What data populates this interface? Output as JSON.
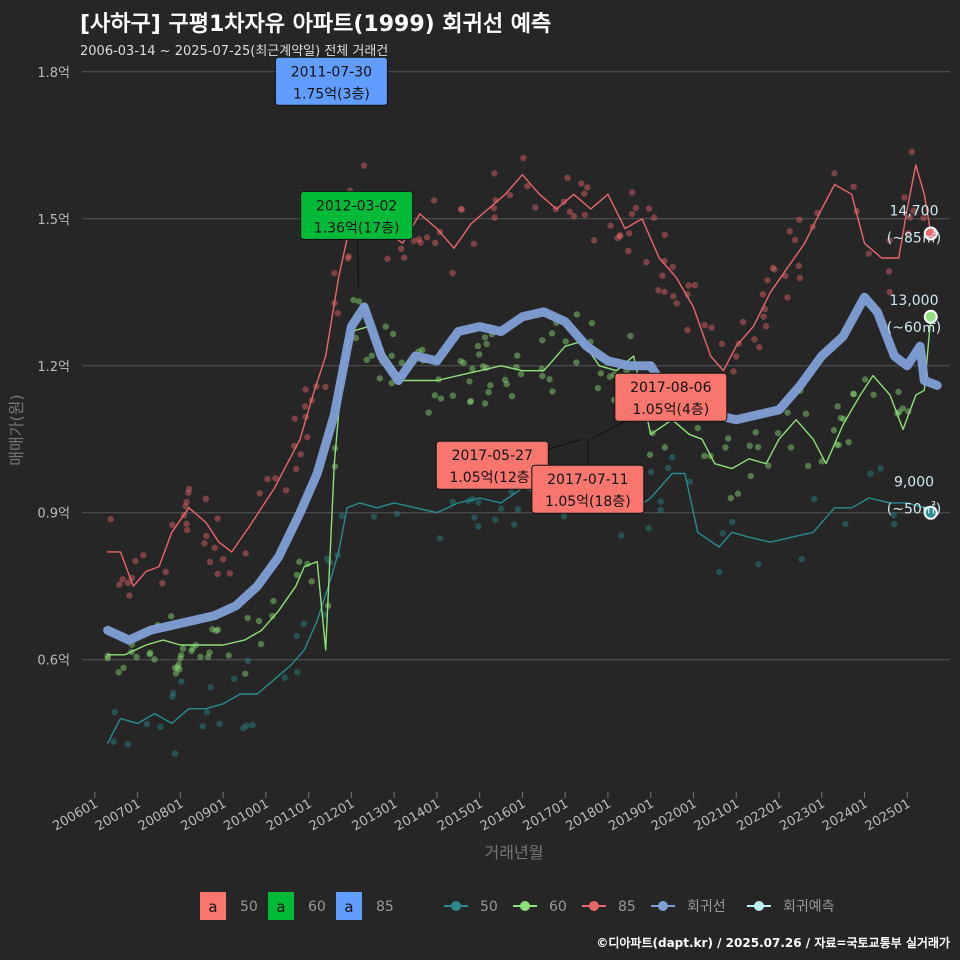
{
  "header": {
    "title": "[사하구] 구평1차자유 아파트(1999) 회귀선 예측",
    "subtitle": "2006-03-14 ~ 2025-07-25(최근계약일) 전체 거래건"
  },
  "footer": {
    "credit": "©디아파트(dapt.kr) / 2025.07.26 / 자료=국토교통부 실거래가"
  },
  "colors": {
    "bg": "#262626",
    "grid": "#555555",
    "s50": "#2a8a8f",
    "s60": "#8fe07a",
    "s85": "#e8676a",
    "regression": "#7f9fd6",
    "forecast": "#bff3f3",
    "label50": "#f8766d",
    "label60": "#00ba38",
    "label85": "#619cff"
  },
  "chart_data": {
    "type": "line",
    "xlabel": "거래년월",
    "ylabel": "매매가(원)",
    "x_ticks": [
      "200601",
      "200701",
      "200801",
      "200901",
      "201001",
      "201101",
      "201201",
      "201301",
      "201401",
      "201501",
      "201601",
      "201701",
      "201801",
      "201901",
      "202001",
      "202101",
      "202201",
      "202301",
      "202401",
      "202501"
    ],
    "x_range": [
      2005.7,
      2026.0
    ],
    "y_ticks": [
      {
        "value": 0.6,
        "label": "0.6억"
      },
      {
        "value": 0.9,
        "label": "0.9억"
      },
      {
        "value": 1.2,
        "label": "1.2억"
      },
      {
        "value": 1.5,
        "label": "1.5억"
      },
      {
        "value": 1.8,
        "label": "1.8억"
      }
    ],
    "y_range": [
      0.33,
      1.82
    ],
    "series": [
      {
        "name": "50",
        "color": "#2a8a8f",
        "points": [
          [
            2006.3,
            0.43
          ],
          [
            2006.6,
            0.48
          ],
          [
            2007.0,
            0.47
          ],
          [
            2007.4,
            0.49
          ],
          [
            2007.8,
            0.47
          ],
          [
            2008.2,
            0.5
          ],
          [
            2008.6,
            0.5
          ],
          [
            2009.0,
            0.51
          ],
          [
            2009.4,
            0.53
          ],
          [
            2009.8,
            0.53
          ],
          [
            2010.2,
            0.56
          ],
          [
            2010.6,
            0.59
          ],
          [
            2010.9,
            0.62
          ],
          [
            2011.2,
            0.68
          ],
          [
            2011.5,
            0.76
          ],
          [
            2011.7,
            0.82
          ],
          [
            2011.9,
            0.91
          ],
          [
            2012.2,
            0.92
          ],
          [
            2012.6,
            0.91
          ],
          [
            2013.0,
            0.92
          ],
          [
            2013.5,
            0.91
          ],
          [
            2014.0,
            0.9
          ],
          [
            2014.5,
            0.92
          ],
          [
            2015.0,
            0.93
          ],
          [
            2015.5,
            0.92
          ],
          [
            2016.0,
            0.95
          ],
          [
            2016.5,
            0.94
          ],
          [
            2017.0,
            0.96
          ],
          [
            2017.5,
            0.95
          ],
          [
            2018.0,
            0.93
          ],
          [
            2018.5,
            0.9
          ],
          [
            2019.0,
            0.93
          ],
          [
            2019.5,
            0.98
          ],
          [
            2019.8,
            0.98
          ],
          [
            2020.1,
            0.86
          ],
          [
            2020.6,
            0.83
          ],
          [
            2020.9,
            0.86
          ],
          [
            2021.3,
            0.85
          ],
          [
            2021.8,
            0.84
          ],
          [
            2022.3,
            0.85
          ],
          [
            2022.8,
            0.86
          ],
          [
            2023.3,
            0.91
          ],
          [
            2023.7,
            0.91
          ],
          [
            2024.1,
            0.93
          ],
          [
            2024.6,
            0.92
          ],
          [
            2025.0,
            0.92
          ],
          [
            2025.4,
            0.91
          ],
          [
            2025.55,
            0.9
          ]
        ],
        "end_label": "9,000",
        "end_sub": "(~50㎡)"
      },
      {
        "name": "60",
        "color": "#8fe07a",
        "points": [
          [
            2006.3,
            0.61
          ],
          [
            2006.7,
            0.61
          ],
          [
            2007.2,
            0.63
          ],
          [
            2007.6,
            0.64
          ],
          [
            2008.0,
            0.63
          ],
          [
            2008.5,
            0.63
          ],
          [
            2009.0,
            0.63
          ],
          [
            2009.5,
            0.64
          ],
          [
            2009.9,
            0.66
          ],
          [
            2010.3,
            0.7
          ],
          [
            2010.7,
            0.75
          ],
          [
            2010.9,
            0.79
          ],
          [
            2011.2,
            0.8
          ],
          [
            2011.4,
            0.62
          ],
          [
            2011.6,
            1.0
          ],
          [
            2011.8,
            1.2
          ],
          [
            2012.0,
            1.27
          ],
          [
            2012.4,
            1.28
          ],
          [
            2012.8,
            1.22
          ],
          [
            2013.2,
            1.17
          ],
          [
            2013.6,
            1.17
          ],
          [
            2014.0,
            1.17
          ],
          [
            2014.5,
            1.18
          ],
          [
            2015.0,
            1.19
          ],
          [
            2015.5,
            1.2
          ],
          [
            2016.0,
            1.19
          ],
          [
            2016.5,
            1.19
          ],
          [
            2017.0,
            1.24
          ],
          [
            2017.4,
            1.25
          ],
          [
            2017.8,
            1.2
          ],
          [
            2018.2,
            1.19
          ],
          [
            2018.6,
            1.22
          ],
          [
            2019.0,
            1.06
          ],
          [
            2019.5,
            1.09
          ],
          [
            2019.9,
            1.06
          ],
          [
            2020.2,
            1.05
          ],
          [
            2020.5,
            1.0
          ],
          [
            2020.9,
            0.99
          ],
          [
            2021.3,
            1.01
          ],
          [
            2021.7,
            1.0
          ],
          [
            2022.0,
            1.05
          ],
          [
            2022.4,
            1.09
          ],
          [
            2022.8,
            1.05
          ],
          [
            2023.1,
            1.0
          ],
          [
            2023.5,
            1.08
          ],
          [
            2023.9,
            1.14
          ],
          [
            2024.2,
            1.18
          ],
          [
            2024.6,
            1.14
          ],
          [
            2024.9,
            1.07
          ],
          [
            2025.2,
            1.14
          ],
          [
            2025.4,
            1.15
          ],
          [
            2025.55,
            1.3
          ]
        ],
        "end_label": "13,000",
        "end_sub": "(~60㎡)"
      },
      {
        "name": "85",
        "color": "#e8676a",
        "points": [
          [
            2006.3,
            0.82
          ],
          [
            2006.6,
            0.82
          ],
          [
            2006.9,
            0.75
          ],
          [
            2007.2,
            0.78
          ],
          [
            2007.5,
            0.79
          ],
          [
            2007.8,
            0.86
          ],
          [
            2008.2,
            0.91
          ],
          [
            2008.6,
            0.88
          ],
          [
            2008.9,
            0.84
          ],
          [
            2009.2,
            0.82
          ],
          [
            2009.6,
            0.87
          ],
          [
            2009.9,
            0.91
          ],
          [
            2010.2,
            0.95
          ],
          [
            2010.5,
            1.0
          ],
          [
            2010.8,
            1.05
          ],
          [
            2011.1,
            1.14
          ],
          [
            2011.4,
            1.22
          ],
          [
            2011.7,
            1.38
          ],
          [
            2012.0,
            1.5
          ],
          [
            2012.3,
            1.55
          ],
          [
            2012.6,
            1.49
          ],
          [
            2012.9,
            1.47
          ],
          [
            2013.2,
            1.45
          ],
          [
            2013.6,
            1.51
          ],
          [
            2014.0,
            1.48
          ],
          [
            2014.4,
            1.44
          ],
          [
            2014.8,
            1.49
          ],
          [
            2015.2,
            1.52
          ],
          [
            2015.6,
            1.55
          ],
          [
            2016.0,
            1.59
          ],
          [
            2016.4,
            1.55
          ],
          [
            2016.8,
            1.52
          ],
          [
            2017.2,
            1.55
          ],
          [
            2017.6,
            1.52
          ],
          [
            2018.0,
            1.55
          ],
          [
            2018.4,
            1.48
          ],
          [
            2018.8,
            1.5
          ],
          [
            2019.2,
            1.42
          ],
          [
            2019.6,
            1.38
          ],
          [
            2020.0,
            1.32
          ],
          [
            2020.4,
            1.22
          ],
          [
            2020.7,
            1.19
          ],
          [
            2021.0,
            1.24
          ],
          [
            2021.4,
            1.28
          ],
          [
            2021.8,
            1.35
          ],
          [
            2022.2,
            1.4
          ],
          [
            2022.6,
            1.45
          ],
          [
            2023.0,
            1.52
          ],
          [
            2023.3,
            1.57
          ],
          [
            2023.7,
            1.55
          ],
          [
            2024.0,
            1.45
          ],
          [
            2024.4,
            1.42
          ],
          [
            2024.8,
            1.42
          ],
          [
            2025.0,
            1.52
          ],
          [
            2025.2,
            1.61
          ],
          [
            2025.4,
            1.55
          ],
          [
            2025.55,
            1.47
          ]
        ],
        "end_label": "14,700",
        "end_sub": "(~85㎡)"
      },
      {
        "name": "회귀선",
        "color": "#7f9fd6",
        "points": [
          [
            2006.3,
            0.66
          ],
          [
            2006.8,
            0.64
          ],
          [
            2007.3,
            0.66
          ],
          [
            2007.8,
            0.67
          ],
          [
            2008.3,
            0.68
          ],
          [
            2008.8,
            0.69
          ],
          [
            2009.3,
            0.71
          ],
          [
            2009.8,
            0.75
          ],
          [
            2010.3,
            0.81
          ],
          [
            2010.8,
            0.9
          ],
          [
            2011.2,
            0.98
          ],
          [
            2011.6,
            1.1
          ],
          [
            2012.0,
            1.28
          ],
          [
            2012.3,
            1.32
          ],
          [
            2012.7,
            1.22
          ],
          [
            2013.1,
            1.17
          ],
          [
            2013.5,
            1.22
          ],
          [
            2014.0,
            1.21
          ],
          [
            2014.5,
            1.27
          ],
          [
            2015.0,
            1.28
          ],
          [
            2015.5,
            1.27
          ],
          [
            2016.0,
            1.3
          ],
          [
            2016.5,
            1.31
          ],
          [
            2017.0,
            1.29
          ],
          [
            2017.5,
            1.24
          ],
          [
            2018.0,
            1.21
          ],
          [
            2018.5,
            1.2
          ],
          [
            2019.0,
            1.2
          ],
          [
            2019.5,
            1.13
          ],
          [
            2020.0,
            1.12
          ],
          [
            2020.5,
            1.1
          ],
          [
            2021.0,
            1.09
          ],
          [
            2021.5,
            1.1
          ],
          [
            2022.0,
            1.11
          ],
          [
            2022.5,
            1.16
          ],
          [
            2023.0,
            1.22
          ],
          [
            2023.5,
            1.26
          ],
          [
            2024.0,
            1.34
          ],
          [
            2024.3,
            1.31
          ],
          [
            2024.7,
            1.22
          ],
          [
            2025.0,
            1.2
          ],
          [
            2025.3,
            1.24
          ],
          [
            2025.4,
            1.17
          ],
          [
            2025.7,
            1.16
          ]
        ]
      }
    ],
    "forecast_points": [
      {
        "series": "85",
        "x": 2025.55,
        "y": 1.47
      },
      {
        "series": "60",
        "x": 2025.55,
        "y": 1.3
      },
      {
        "series": "50",
        "x": 2025.55,
        "y": 0.9
      }
    ],
    "annotations": [
      {
        "date": "2011-07-30",
        "value": "1.75억(3층)",
        "kind": "85",
        "x": 2011.58,
        "y": 1.75
      },
      {
        "date": "2012-03-02",
        "value": "1.36억(17층)",
        "kind": "60",
        "x": 2012.17,
        "y": 1.36
      },
      {
        "date": "2017-05-27",
        "value": "1.05억(12층)",
        "kind": "50",
        "x": 2017.4,
        "y": 1.05
      },
      {
        "date": "2017-07-11",
        "value": "1.05억(18층)",
        "kind": "50",
        "x": 2017.53,
        "y": 1.05
      },
      {
        "date": "2017-08-06",
        "value": "1.05억(4층)",
        "kind": "50",
        "x": 2017.6,
        "y": 1.05
      }
    ],
    "legend": {
      "label_items": [
        {
          "key": "a",
          "text": "50",
          "color": "#f8766d"
        },
        {
          "key": "a",
          "text": "60",
          "color": "#00ba38"
        },
        {
          "key": "a",
          "text": "85",
          "color": "#619cff"
        }
      ],
      "line_items": [
        {
          "text": "50",
          "color": "#2a8a8f"
        },
        {
          "text": "60",
          "color": "#8fe07a"
        },
        {
          "text": "85",
          "color": "#e8676a"
        },
        {
          "text": "회귀선",
          "color": "#7f9fd6"
        },
        {
          "text": "회귀예측",
          "color": "#bff3f3"
        }
      ],
      "position": "bottom"
    }
  }
}
